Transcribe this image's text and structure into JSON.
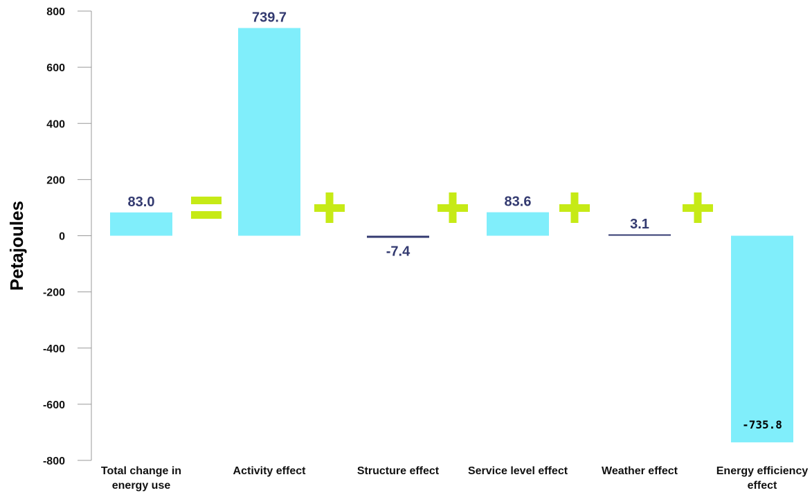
{
  "chart_data": {
    "type": "bar",
    "ylabel": "Petajoules",
    "ylim": [
      -800,
      800
    ],
    "yticks": [
      "800",
      "600",
      "400",
      "200",
      "0",
      "-200",
      "-400",
      "-600",
      "-800"
    ],
    "ytick_values": [
      800,
      600,
      400,
      200,
      0,
      -200,
      -400,
      -600,
      -800
    ],
    "categories": [
      [
        "Total change in",
        "energy use"
      ],
      [
        "Activity effect"
      ],
      [
        "Structure effect"
      ],
      [
        "Service level effect"
      ],
      [
        "Weather effect"
      ],
      [
        "Energy efficiency",
        "effect"
      ]
    ],
    "values": [
      83.0,
      739.7,
      -7.4,
      83.6,
      3.1,
      -735.8
    ],
    "data_labels": [
      "83.0",
      "739.7",
      "-7.4",
      "83.6",
      "3.1",
      "-735.8"
    ],
    "operators": [
      "=",
      "+",
      "+",
      "+",
      "+"
    ],
    "colors": {
      "bar": "#80eefb",
      "small_bar": "#333a70",
      "label": "#333a70",
      "operator": "#c6ea16",
      "axis": "#999999"
    }
  }
}
